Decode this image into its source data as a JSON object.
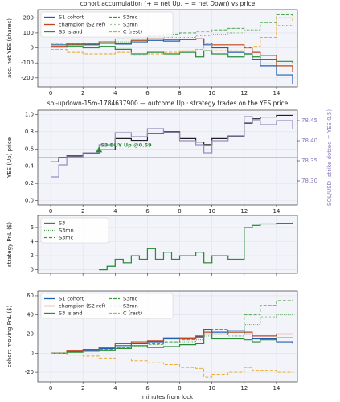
{
  "chart_data": [
    {
      "type": "line",
      "title": "cohort accumulation (+ = net Up, − = net Down) vs price",
      "ylabel": "acc. net YES (shares)",
      "step": true,
      "grid": true,
      "legend": "upper left",
      "x": [
        0,
        1,
        2,
        3,
        4,
        5,
        6,
        7,
        8,
        9,
        9.5,
        10,
        11,
        12,
        12.5,
        13,
        14,
        15
      ],
      "xlim": [
        -0.8,
        15.3
      ],
      "xticks": [
        0,
        2,
        4,
        6,
        8,
        10,
        12,
        14
      ],
      "ylim": [
        -260,
        255
      ],
      "yticks": [
        -200,
        -100,
        0,
        100,
        200
      ],
      "series": [
        {
          "name": "S1 cohort",
          "color": "#1f5fb0",
          "style": "solid",
          "values": [
            20,
            25,
            20,
            30,
            25,
            40,
            50,
            45,
            55,
            60,
            20,
            0,
            -30,
            -40,
            -80,
            -120,
            -180,
            -240
          ]
        },
        {
          "name": "champion (S2 ref)",
          "color": "#c0441c",
          "style": "solid",
          "values": [
            10,
            20,
            25,
            40,
            30,
            50,
            60,
            55,
            55,
            60,
            30,
            20,
            20,
            0,
            -30,
            -50,
            -120,
            -160
          ]
        },
        {
          "name": "S3 island",
          "color": "#2a8a3a",
          "style": "solid",
          "values": [
            5,
            10,
            0,
            10,
            -10,
            -40,
            -30,
            -40,
            -30,
            -60,
            -20,
            -40,
            -60,
            -40,
            -60,
            -80,
            -90,
            -100
          ]
        },
        {
          "name": "S3mc",
          "color": "#3a9a3a",
          "style": "dashed",
          "values": [
            30,
            25,
            30,
            40,
            60,
            60,
            80,
            90,
            100,
            110,
            110,
            120,
            130,
            140,
            140,
            170,
            220,
            210
          ]
        },
        {
          "name": "S3mn",
          "color": "#3a9a3a",
          "style": "dotted",
          "values": [
            20,
            20,
            25,
            30,
            40,
            50,
            60,
            70,
            70,
            80,
            80,
            90,
            100,
            120,
            120,
            140,
            150,
            150
          ]
        },
        {
          "name": "C (rest)",
          "color": "#e8a317",
          "style": "dashed",
          "values": [
            -10,
            -30,
            -40,
            -40,
            -30,
            -50,
            -40,
            -30,
            -20,
            -10,
            30,
            -20,
            -20,
            0,
            10,
            70,
            200,
            180
          ]
        }
      ]
    },
    {
      "type": "line",
      "title": "sol-updown-15m-1784637900 — outcome Up · strategy trades on the YES price",
      "ylabel": "YES (Up) price",
      "y2label": "SOL/USD (strike dotted = YES 0.5)",
      "step": true,
      "grid": true,
      "x": [
        0,
        0.5,
        1,
        2,
        3,
        4,
        5,
        6,
        7,
        8,
        9,
        9.5,
        10,
        11,
        12,
        12.5,
        13,
        14,
        15
      ],
      "xlim": [
        -0.8,
        15.3
      ],
      "xticks": [
        0,
        2,
        4,
        6,
        8,
        10,
        12,
        14
      ],
      "ylim": [
        -0.05,
        1.05
      ],
      "yticks": [
        {
          "value": 0,
          "label": "0.0"
        },
        0.2,
        0.4,
        0.6,
        0.8,
        {
          "value": 1,
          "label": "1.0"
        }
      ],
      "y2lim": [
        78.24,
        78.476
      ],
      "y2ticks": [
        {
          "value": 78.3,
          "label": "78.30"
        },
        78.35,
        {
          "value": 78.4,
          "label": "78.40"
        },
        78.45
      ],
      "reference_line": 0.5,
      "series": [
        {
          "name": "YES price",
          "color": "#222222",
          "style": "solid",
          "values": [
            0.45,
            0.5,
            0.52,
            0.55,
            0.59,
            0.72,
            0.7,
            0.78,
            0.8,
            0.72,
            0.68,
            0.65,
            0.72,
            0.75,
            0.9,
            0.95,
            0.97,
            0.99,
            0.99
          ]
        },
        {
          "name": "SOL/USD",
          "color": "#9b8ac4",
          "style": "solid",
          "axis": "y2",
          "values": [
            78.31,
            78.34,
            78.36,
            78.37,
            78.39,
            78.42,
            78.41,
            78.43,
            78.42,
            78.4,
            78.39,
            78.37,
            78.4,
            78.41,
            78.46,
            78.45,
            78.44,
            78.45,
            78.43
          ]
        }
      ],
      "annotation": {
        "text": "S3 BUY Up @0.59",
        "x": 3,
        "y": 0.59,
        "color": "#2a8a3a"
      }
    },
    {
      "type": "line",
      "ylabel": "strategy PnL ($)",
      "step": true,
      "grid": true,
      "legend": "upper left",
      "xtick_labels": false,
      "x": [
        3,
        3.5,
        4,
        4.5,
        5,
        5.5,
        6,
        6.5,
        7,
        7.5,
        8,
        9,
        9.5,
        10,
        11,
        12,
        12.5,
        13,
        14,
        15
      ],
      "xlim": [
        -0.8,
        15.3
      ],
      "xticks": [
        0,
        2,
        4,
        6,
        8,
        10,
        12,
        14
      ],
      "ylim": [
        -0.5,
        7.7
      ],
      "yticks": [
        0,
        2,
        4,
        6
      ],
      "series": [
        {
          "name": "S3mc",
          "color": "#3a9a3a",
          "style": "dashed",
          "values": [
            0,
            0.5,
            1.5,
            1,
            2,
            1.5,
            3,
            1.5,
            2.5,
            1.5,
            2,
            2.5,
            1,
            2,
            1.5,
            6,
            6.3,
            6.5,
            6.6,
            6.7
          ]
        },
        {
          "name": "S3mn",
          "color": "#3a9a3a",
          "style": "dotted",
          "values": [
            0,
            0.5,
            1.5,
            1,
            2,
            1.5,
            3,
            1.5,
            2.5,
            1.5,
            2,
            2.5,
            1,
            2,
            1.5,
            6,
            6.3,
            6.5,
            6.6,
            6.7
          ]
        },
        {
          "name": "S3",
          "color": "#2a8a3a",
          "style": "solid",
          "values": [
            0,
            0.5,
            1.5,
            1,
            2,
            1.5,
            3,
            1.5,
            2.5,
            1.5,
            2,
            2.5,
            1,
            2,
            1.5,
            6,
            6.3,
            6.5,
            6.6,
            6.7
          ]
        }
      ]
    },
    {
      "type": "line",
      "ylabel": "cohort moving PnL ($)",
      "xlabel": "minutes from lock",
      "step": true,
      "grid": true,
      "legend": "upper left",
      "x": [
        0,
        1,
        2,
        3,
        4,
        5,
        6,
        7,
        8,
        9,
        9.5,
        10,
        11,
        12,
        12.5,
        13,
        14,
        15
      ],
      "xlim": [
        -0.8,
        15.3
      ],
      "xticks": [
        0,
        2,
        4,
        6,
        8,
        10,
        12,
        14
      ],
      "ylim": [
        -30,
        65
      ],
      "yticks": [
        -20,
        0,
        20,
        40,
        60
      ],
      "series": [
        {
          "name": "S1 cohort",
          "color": "#1f5fb0",
          "style": "solid",
          "values": [
            0,
            2,
            3,
            5,
            8,
            10,
            12,
            15,
            16,
            17,
            25,
            22,
            24,
            20,
            15,
            15,
            12,
            10
          ]
        },
        {
          "name": "champion (S2 ref)",
          "color": "#c0441c",
          "style": "solid",
          "values": [
            0,
            3,
            4,
            6,
            10,
            12,
            13,
            16,
            15,
            18,
            22,
            20,
            22,
            22,
            18,
            18,
            20,
            20
          ]
        },
        {
          "name": "S3 island",
          "color": "#2a8a3a",
          "style": "solid",
          "values": [
            0,
            1,
            2,
            3,
            5,
            8,
            6,
            7,
            9,
            10,
            20,
            15,
            15,
            14,
            12,
            14,
            16,
            16
          ]
        },
        {
          "name": "S3mc",
          "color": "#3a9a3a",
          "style": "dashed",
          "values": [
            0,
            1,
            2,
            4,
            6,
            8,
            10,
            12,
            14,
            16,
            20,
            25,
            20,
            40,
            40,
            50,
            55,
            56
          ]
        },
        {
          "name": "S3mn",
          "color": "#3a9a3a",
          "style": "dotted",
          "values": [
            0,
            1,
            2,
            3,
            5,
            7,
            9,
            11,
            12,
            14,
            18,
            20,
            18,
            30,
            30,
            38,
            40,
            40
          ]
        },
        {
          "name": "C (rest)",
          "color": "#e8a317",
          "style": "dashed",
          "values": [
            0,
            -2,
            -3,
            -5,
            -6,
            -8,
            -10,
            -12,
            -15,
            -16,
            -25,
            -22,
            -20,
            -15,
            -18,
            -18,
            -20,
            -20
          ]
        }
      ]
    }
  ]
}
